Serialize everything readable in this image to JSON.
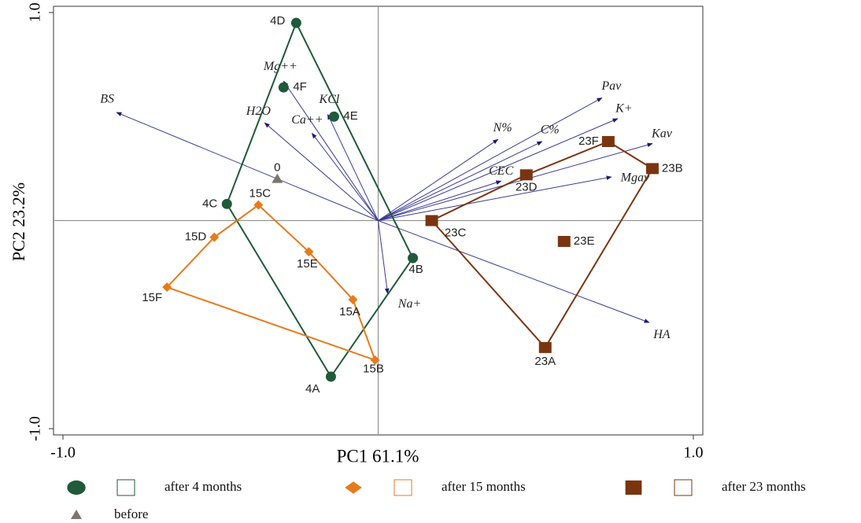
{
  "chart_data": {
    "type": "biplot",
    "x_label": "PC1 61.1%",
    "y_label": "PC2 23.2%",
    "xlim": [
      -1.03,
      1.03
    ],
    "ylim": [
      -1.03,
      1.03
    ],
    "xticks": [
      {
        "value": -1,
        "label": "-1.0"
      },
      {
        "value": 1,
        "label": "1.0"
      }
    ],
    "yticks": [
      {
        "value": -1,
        "label": "-1.0"
      },
      {
        "value": 1,
        "label": "1.0"
      }
    ],
    "hull": true,
    "series": [
      {
        "name": "after 4 months",
        "color": "#1f5a3a",
        "marker": "circle",
        "labels": [
          "4D",
          "4F",
          "4E",
          "4C",
          "4B",
          "4A"
        ],
        "x": [
          -0.26,
          -0.3,
          -0.14,
          -0.48,
          0.11,
          -0.15
        ],
        "y": [
          0.95,
          0.64,
          0.5,
          0.08,
          -0.18,
          -0.75
        ]
      },
      {
        "name": "after 15 months",
        "color": "#e87a1c",
        "marker": "diamond",
        "labels": [
          "15C",
          "15D",
          "15E",
          "15F",
          "15A",
          "15B"
        ],
        "x": [
          -0.38,
          -0.52,
          -0.22,
          -0.67,
          -0.08,
          -0.01
        ],
        "y": [
          0.075,
          -0.08,
          -0.15,
          -0.32,
          -0.38,
          -0.67
        ]
      },
      {
        "name": "after 23 months",
        "color": "#7a3510",
        "marker": "square",
        "labels": [
          "23F",
          "23B",
          "23D",
          "23C",
          "23E",
          "23A"
        ],
        "x": [
          0.73,
          0.87,
          0.47,
          0.17,
          0.59,
          0.53
        ],
        "y": [
          0.38,
          0.25,
          0.22,
          0.0,
          -0.1,
          -0.61
        ]
      },
      {
        "name": "before",
        "color": "#7d756b",
        "marker": "triangle",
        "labels": [
          "0"
        ],
        "x": [
          -0.32
        ],
        "y": [
          0.2
        ]
      }
    ],
    "vectors": {
      "color": "#3a3a9a",
      "names": [
        "BS",
        "Mg++",
        "H2O",
        "KCl",
        "Ca++",
        "N%",
        "Pav",
        "K+",
        "C%",
        "Kav",
        "CEC",
        "Mgav",
        "Na+",
        "HA"
      ],
      "x": [
        -0.83,
        -0.3,
        -0.36,
        -0.16,
        -0.21,
        0.38,
        0.71,
        0.76,
        0.52,
        0.87,
        0.39,
        0.74,
        0.03,
        0.86
      ],
      "y": [
        0.52,
        0.67,
        0.47,
        0.51,
        0.42,
        0.39,
        0.59,
        0.49,
        0.38,
        0.37,
        0.19,
        0.21,
        -0.35,
        -0.49
      ]
    }
  }
}
